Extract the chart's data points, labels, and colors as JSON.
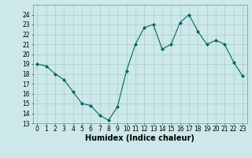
{
  "x": [
    0,
    1,
    2,
    3,
    4,
    5,
    6,
    7,
    8,
    9,
    10,
    11,
    12,
    13,
    14,
    15,
    16,
    17,
    18,
    19,
    20,
    21,
    22,
    23
  ],
  "y": [
    19.0,
    18.8,
    18.0,
    17.4,
    16.2,
    15.0,
    14.8,
    13.8,
    13.3,
    14.7,
    18.3,
    21.0,
    22.7,
    23.0,
    20.5,
    21.0,
    23.2,
    24.0,
    22.3,
    21.0,
    21.4,
    21.0,
    19.2,
    17.8
  ],
  "xlabel": "Humidex (Indice chaleur)",
  "ylim": [
    13,
    25
  ],
  "xlim": [
    -0.5,
    23.5
  ],
  "yticks": [
    13,
    14,
    15,
    16,
    17,
    18,
    19,
    20,
    21,
    22,
    23,
    24
  ],
  "xticks": [
    0,
    1,
    2,
    3,
    4,
    5,
    6,
    7,
    8,
    9,
    10,
    11,
    12,
    13,
    14,
    15,
    16,
    17,
    18,
    19,
    20,
    21,
    22,
    23
  ],
  "line_color": "#006666",
  "marker_color": "#006666",
  "bg_color": "#cce8e8",
  "grid_color": "#aacccc",
  "tick_label_fontsize": 5.5,
  "xlabel_fontsize": 7.0
}
